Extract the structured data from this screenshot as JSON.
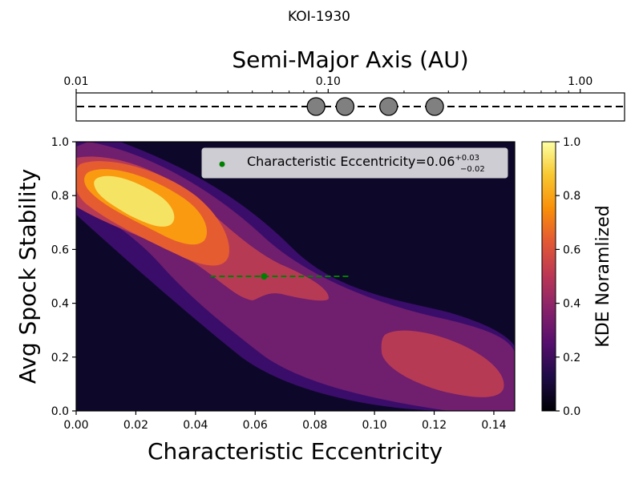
{
  "figure": {
    "title": "KOI-1930"
  },
  "chart_data": [
    {
      "type": "scatter",
      "title": "",
      "xlabel": "Semi-Major Axis (AU)",
      "xscale": "log",
      "xlim": [
        0.01,
        1.5
      ],
      "xtick_labels": [
        "0.01",
        "0.10",
        "1.00"
      ],
      "xtick_values": [
        0.01,
        0.1,
        1.0
      ],
      "axis_position": "top",
      "planets": [
        {
          "a": 0.0895,
          "y": 0
        },
        {
          "a": 0.1167,
          "y": 0
        },
        {
          "a": 0.1737,
          "y": 0
        },
        {
          "a": 0.2645,
          "y": 0
        }
      ],
      "marker_color": "#808080",
      "line_style": "dashed"
    },
    {
      "type": "heatmap",
      "subtype": "filled-contour-kde",
      "xlabel": "Characteristic Eccentricity",
      "ylabel": "Avg Spock Stability",
      "xlim": [
        0.0,
        0.147
      ],
      "ylim": [
        0.0,
        1.0
      ],
      "xtick_labels": [
        "0.00",
        "0.02",
        "0.04",
        "0.06",
        "0.08",
        "0.10",
        "0.12",
        "0.14"
      ],
      "ytick_labels": [
        "0.0",
        "0.2",
        "0.4",
        "0.6",
        "0.8",
        "1.0"
      ],
      "colormap": "inferno",
      "contour_levels": [
        {
          "level": 0.0,
          "color": "#0d0829"
        },
        {
          "level": 0.15,
          "color": "#3a0d6a"
        },
        {
          "level": 0.3,
          "color": "#701e6e"
        },
        {
          "level": 0.45,
          "color": "#b73a55"
        },
        {
          "level": 0.6,
          "color": "#e55c30"
        },
        {
          "level": 0.75,
          "color": "#f99a10"
        },
        {
          "level": 0.9,
          "color": "#f5e364"
        }
      ],
      "marker": {
        "label": "Characteristic Eccentricity=0.06",
        "sup": "+0.03",
        "sub": "−0.02",
        "x": 0.063,
        "y": 0.5,
        "x_low": 0.045,
        "x_high": 0.092,
        "color": "#008000"
      },
      "legend_position": "top-right",
      "colorbar": {
        "label": "KDE Noramlized",
        "range": [
          0.0,
          1.0
        ],
        "tick_labels": [
          "0.0",
          "0.2",
          "0.4",
          "0.6",
          "0.8",
          "1.0"
        ]
      }
    }
  ]
}
